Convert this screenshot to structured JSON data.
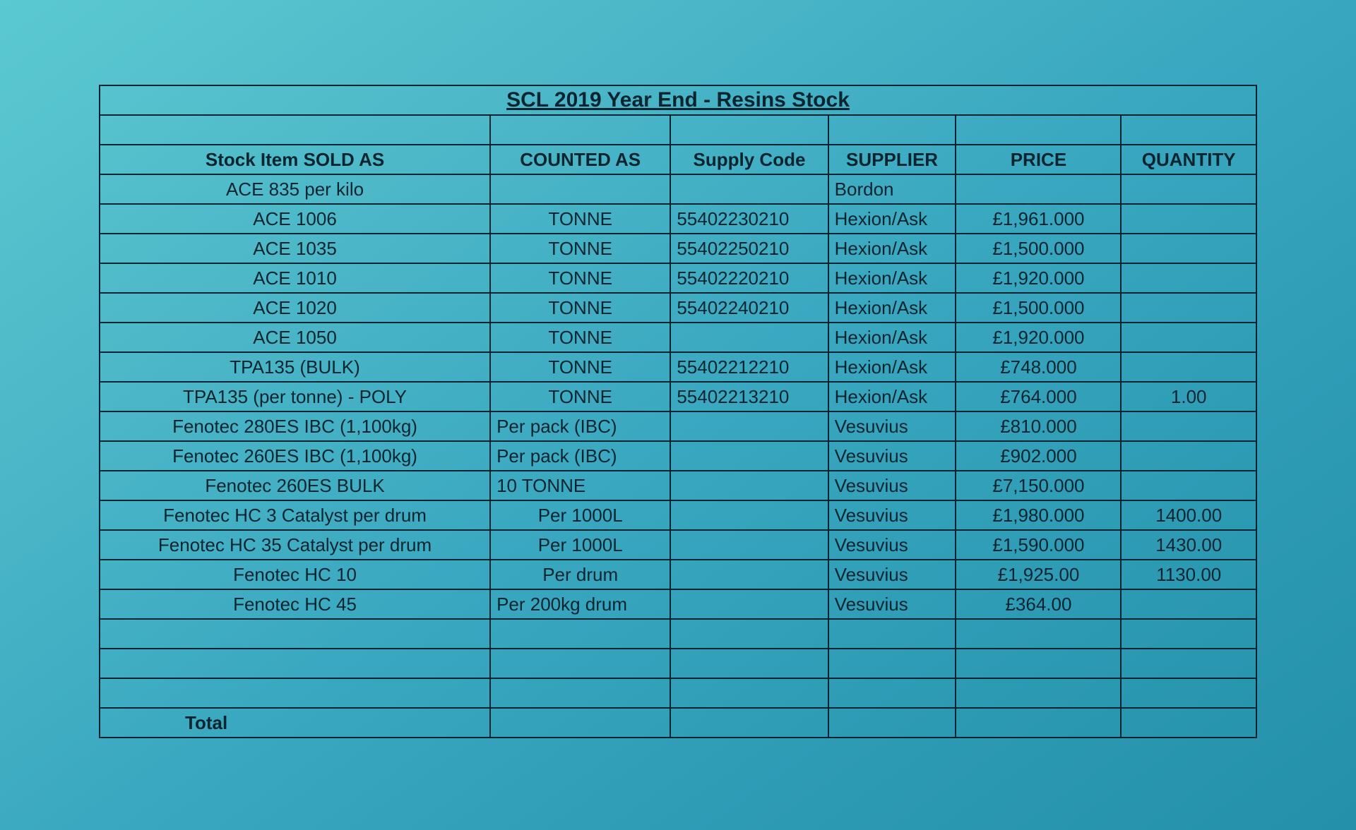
{
  "title": "SCL 2019 Year End - Resins Stock",
  "columns": [
    {
      "label": "Stock Item SOLD AS",
      "align": "center"
    },
    {
      "label": "COUNTED AS",
      "align": "center"
    },
    {
      "label": "Supply Code",
      "align": "center"
    },
    {
      "label": "SUPPLIER",
      "align": "center"
    },
    {
      "label": "PRICE",
      "align": "center"
    },
    {
      "label": "QUANTITY",
      "align": "center"
    }
  ],
  "total_label": "Total",
  "blank_row_count": 3,
  "colors": {
    "border": "#0a2530",
    "text": "#0a2530"
  },
  "rows": [
    {
      "item": "ACE 835       per kilo",
      "counted": "",
      "code": "",
      "supplier": "Bordon",
      "price": "",
      "qty": ""
    },
    {
      "item": "ACE 1006",
      "counted": "TONNE",
      "code": "55402230210",
      "supplier": "Hexion/Ask",
      "price": "£1,961.000",
      "qty": ""
    },
    {
      "item": "ACE 1035",
      "counted": "TONNE",
      "code": "55402250210",
      "supplier": "Hexion/Ask",
      "price": "£1,500.000",
      "qty": ""
    },
    {
      "item": "ACE 1010",
      "counted": "TONNE",
      "code": "55402220210",
      "supplier": "Hexion/Ask",
      "price": "£1,920.000",
      "qty": ""
    },
    {
      "item": "ACE 1020",
      "counted": "TONNE",
      "code": "55402240210",
      "supplier": "Hexion/Ask",
      "price": "£1,500.000",
      "qty": ""
    },
    {
      "item": "ACE 1050",
      "counted": "TONNE",
      "code": "",
      "supplier": "Hexion/Ask",
      "price": "£1,920.000",
      "qty": ""
    },
    {
      "item": "TPA135 (BULK)",
      "counted": "TONNE",
      "code": "55402212210",
      "supplier": "Hexion/Ask",
      "price": "£748.000",
      "qty": ""
    },
    {
      "item": "TPA135 (per tonne)    - POLY",
      "counted": "TONNE",
      "code": "55402213210",
      "supplier": "Hexion/Ask",
      "price": "£764.000",
      "qty": "1.00"
    },
    {
      "item": "Fenotec 280ES IBC (1,100kg)",
      "counted": "Per pack (IBC)",
      "code": "",
      "supplier": "Vesuvius",
      "price": "£810.000",
      "qty": ""
    },
    {
      "item": "Fenotec 260ES IBC (1,100kg)",
      "counted": "Per pack (IBC)",
      "code": "",
      "supplier": "Vesuvius",
      "price": "£902.000",
      "qty": ""
    },
    {
      "item": "Fenotec 260ES BULK",
      "counted": "10 TONNE",
      "code": "",
      "supplier": "Vesuvius",
      "price": "£7,150.000",
      "qty": ""
    },
    {
      "item": "Fenotec HC 3 Catalyst per drum",
      "counted": "Per 1000L",
      "code": "",
      "supplier": "Vesuvius",
      "price": "£1,980.000",
      "qty": "1400.00"
    },
    {
      "item": "Fenotec HC 35 Catalyst per drum",
      "counted": "Per 1000L",
      "code": "",
      "supplier": "Vesuvius",
      "price": "£1,590.000",
      "qty": "1430.00"
    },
    {
      "item": "Fenotec HC 10",
      "counted": "Per drum",
      "code": "",
      "supplier": "Vesuvius",
      "price": "£1,925.00",
      "qty": "1130.00"
    },
    {
      "item": "Fenotec HC 45",
      "counted": "Per 200kg drum",
      "code": "",
      "supplier": "Vesuvius",
      "price": "£364.00",
      "qty": ""
    }
  ],
  "cell_align": {
    "item": "center",
    "counted": "center",
    "code": "left",
    "supplier": "left",
    "price": "center",
    "qty": "center"
  },
  "counted_left_align_values": [
    "Per pack (IBC)",
    "10 TONNE",
    "Per 200kg drum"
  ]
}
